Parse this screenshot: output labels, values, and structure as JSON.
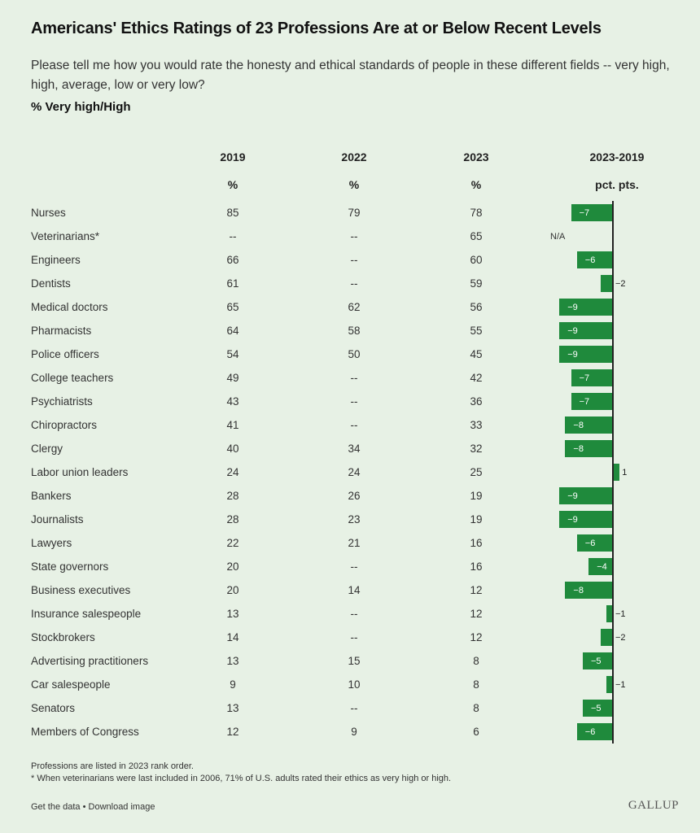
{
  "title": "Americans' Ethics Ratings of 23 Professions Are at or Below Recent Levels",
  "subtitle": "Please tell me how you would rate the honesty and ethical standards of people in these different fields -- very high, high, average, low or very low?",
  "measure": "% Very high/High",
  "columns": {
    "y2019": "2019",
    "y2022": "2022",
    "y2023": "2023",
    "diff": "2023-2019",
    "pct": "%",
    "pctpts": "pct. pts."
  },
  "chart_data": {
    "type": "table",
    "columns": [
      "2019",
      "2022",
      "2023",
      "2023-2019"
    ],
    "rows": [
      {
        "name": "Nurses",
        "v2019": "85",
        "v2022": "79",
        "v2023": "78",
        "diff": -7,
        "label": "−7"
      },
      {
        "name": "Veterinarians*",
        "v2019": "--",
        "v2022": "--",
        "v2023": "65",
        "diff": null,
        "label": "N/A"
      },
      {
        "name": "Engineers",
        "v2019": "66",
        "v2022": "--",
        "v2023": "60",
        "diff": -6,
        "label": "−6"
      },
      {
        "name": "Dentists",
        "v2019": "61",
        "v2022": "--",
        "v2023": "59",
        "diff": -2,
        "label": "−2"
      },
      {
        "name": "Medical doctors",
        "v2019": "65",
        "v2022": "62",
        "v2023": "56",
        "diff": -9,
        "label": "−9"
      },
      {
        "name": "Pharmacists",
        "v2019": "64",
        "v2022": "58",
        "v2023": "55",
        "diff": -9,
        "label": "−9"
      },
      {
        "name": "Police officers",
        "v2019": "54",
        "v2022": "50",
        "v2023": "45",
        "diff": -9,
        "label": "−9"
      },
      {
        "name": "College teachers",
        "v2019": "49",
        "v2022": "--",
        "v2023": "42",
        "diff": -7,
        "label": "−7"
      },
      {
        "name": "Psychiatrists",
        "v2019": "43",
        "v2022": "--",
        "v2023": "36",
        "diff": -7,
        "label": "−7"
      },
      {
        "name": "Chiropractors",
        "v2019": "41",
        "v2022": "--",
        "v2023": "33",
        "diff": -8,
        "label": "−8"
      },
      {
        "name": "Clergy",
        "v2019": "40",
        "v2022": "34",
        "v2023": "32",
        "diff": -8,
        "label": "−8"
      },
      {
        "name": "Labor union leaders",
        "v2019": "24",
        "v2022": "24",
        "v2023": "25",
        "diff": 1,
        "label": "1"
      },
      {
        "name": "Bankers",
        "v2019": "28",
        "v2022": "26",
        "v2023": "19",
        "diff": -9,
        "label": "−9"
      },
      {
        "name": "Journalists",
        "v2019": "28",
        "v2022": "23",
        "v2023": "19",
        "diff": -9,
        "label": "−9"
      },
      {
        "name": "Lawyers",
        "v2019": "22",
        "v2022": "21",
        "v2023": "16",
        "diff": -6,
        "label": "−6"
      },
      {
        "name": "State governors",
        "v2019": "20",
        "v2022": "--",
        "v2023": "16",
        "diff": -4,
        "label": "−4"
      },
      {
        "name": "Business executives",
        "v2019": "20",
        "v2022": "14",
        "v2023": "12",
        "diff": -8,
        "label": "−8"
      },
      {
        "name": "Insurance salespeople",
        "v2019": "13",
        "v2022": "--",
        "v2023": "12",
        "diff": -1,
        "label": "−1"
      },
      {
        "name": "Stockbrokers",
        "v2019": "14",
        "v2022": "--",
        "v2023": "12",
        "diff": -2,
        "label": "−2"
      },
      {
        "name": "Advertising practitioners",
        "v2019": "13",
        "v2022": "15",
        "v2023": "8",
        "diff": -5,
        "label": "−5"
      },
      {
        "name": "Car salespeople",
        "v2019": "9",
        "v2022": "10",
        "v2023": "8",
        "diff": -1,
        "label": "−1"
      },
      {
        "name": "Senators",
        "v2019": "13",
        "v2022": "--",
        "v2023": "8",
        "diff": -5,
        "label": "−5"
      },
      {
        "name": "Members of Congress",
        "v2019": "12",
        "v2022": "9",
        "v2023": "6",
        "diff": -6,
        "label": "−6"
      }
    ]
  },
  "colors": {
    "bar": "#1f8a3c",
    "background": "#e7f1e5"
  },
  "notes": [
    "Professions are listed in 2023 rank order.",
    "* When veterinarians were last included in 2006, 71% of U.S. adults rated their ethics as very high or high."
  ],
  "footer": {
    "links": "Get the data • Download image",
    "brand": "GALLUP"
  }
}
